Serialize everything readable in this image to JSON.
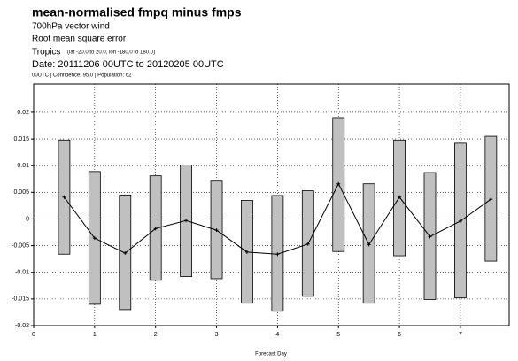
{
  "chart_data": {
    "type": "range",
    "title": "mean-normalised  fmpq minus fmps",
    "subtitle_lines": [
      "700hPa vector wind",
      "Root mean square error"
    ],
    "region": "Tropics",
    "region_detail": "(lat  -20.0 to 20.0, lon  -180.0 to  180.0)",
    "date": "Date: 20111206 00UTC to 20120205 00UTC",
    "note": "00UTC | Confidence: 95.0 | Population: 62",
    "x_label": "Forecast Day",
    "x": [
      0.5,
      1,
      1.5,
      2,
      2.5,
      3,
      3.5,
      4,
      4.5,
      5,
      5.5,
      6,
      6.5,
      7,
      7.5
    ],
    "high": [
      0.0148,
      0.0089,
      0.0045,
      0.0081,
      0.0101,
      0.0071,
      0.0035,
      0.0044,
      0.0053,
      0.019,
      0.0066,
      0.0148,
      0.0087,
      0.0142,
      0.0155
    ],
    "low": [
      -0.0066,
      -0.016,
      -0.017,
      -0.0115,
      -0.0108,
      -0.0112,
      -0.0158,
      -0.0173,
      -0.0145,
      -0.0061,
      -0.0158,
      -0.0069,
      -0.0151,
      -0.0148,
      -0.0079
    ],
    "mean": [
      0.0041,
      -0.0036,
      -0.0064,
      -0.0018,
      -0.0003,
      -0.0021,
      -0.0062,
      -0.0066,
      -0.0047,
      0.0066,
      -0.0048,
      0.0041,
      -0.0033,
      -0.0004,
      0.0037
    ],
    "bar_color": "#c0c0c0",
    "line_color": "#000000",
    "xlim": [
      0,
      7.8
    ],
    "ylim": [
      -0.02,
      0.0253
    ],
    "xticks": [
      0,
      1,
      2,
      3,
      4,
      5,
      6,
      7
    ],
    "yticks": [
      -0.02,
      -0.015,
      -0.01,
      -0.005,
      0,
      0.005,
      0.01,
      0.015,
      0.02
    ],
    "grid": true
  }
}
